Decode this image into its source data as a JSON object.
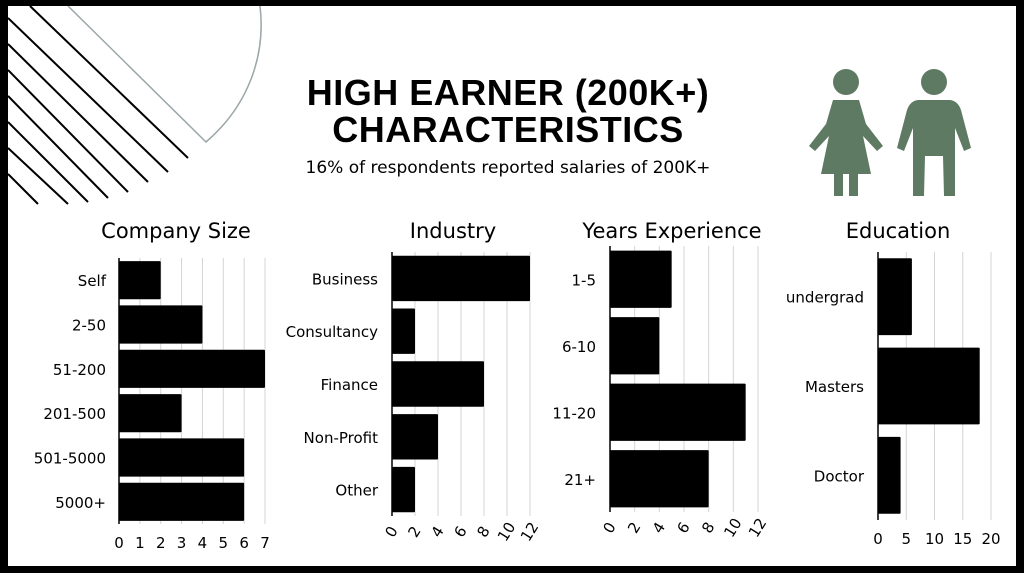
{
  "header": {
    "title_line1": "HIGH EARNER (200K+)",
    "title_line2": "CHARACTERISTICS",
    "subtitle": "16% of respondents reported salaries of 200K+"
  },
  "icons": {
    "people": "woman-and-man-icon",
    "person_color": "#5f7a63"
  },
  "chart_data": [
    {
      "type": "bar",
      "orientation": "horizontal",
      "title": "Company Size",
      "categories": [
        "Self",
        "2-50",
        "51-200",
        "201-500",
        "501-5000",
        "5000+"
      ],
      "values": [
        2,
        4,
        7,
        3,
        6,
        6
      ],
      "xlim": [
        0,
        7
      ],
      "ticks": [
        0,
        1,
        2,
        3,
        4,
        5,
        6,
        7
      ],
      "grid": true
    },
    {
      "type": "bar",
      "orientation": "horizontal",
      "title": "Industry",
      "categories": [
        "Business",
        "Consultancy",
        "Finance",
        "Non-Profit",
        "Other"
      ],
      "values": [
        12,
        2,
        8,
        4,
        2
      ],
      "xlim": [
        0,
        12
      ],
      "ticks": [
        0,
        2,
        4,
        6,
        8,
        10,
        12
      ],
      "grid": true
    },
    {
      "type": "bar",
      "orientation": "horizontal",
      "title": "Years Experience",
      "categories": [
        "1-5",
        "6-10",
        "11-20",
        "21+"
      ],
      "values": [
        5,
        4,
        11,
        8
      ],
      "xlim": [
        0,
        12
      ],
      "ticks": [
        0,
        2,
        4,
        6,
        8,
        10,
        12
      ],
      "grid": true
    },
    {
      "type": "bar",
      "orientation": "horizontal",
      "title": "Education",
      "categories": [
        "undergrad",
        "Masters",
        "Doctor"
      ],
      "values": [
        6,
        18,
        4
      ],
      "xlim": [
        0,
        20
      ],
      "ticks": [
        0,
        5,
        10,
        15,
        20
      ],
      "grid": true
    }
  ]
}
